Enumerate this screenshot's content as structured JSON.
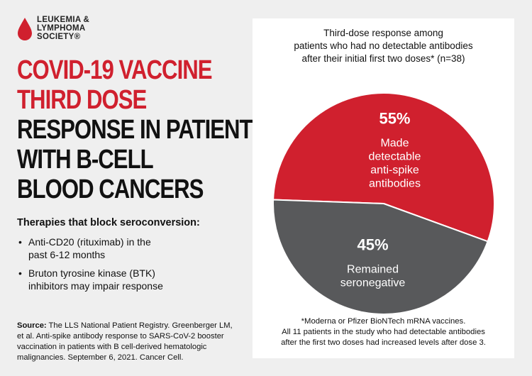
{
  "logo": {
    "lines": [
      "LEUKEMIA &",
      "LYMPHOMA",
      "SOCIETY®"
    ],
    "drop_color": "#d0202e"
  },
  "headline": {
    "red_lines": [
      "COVID-19 VACCINE",
      "THIRD DOSE"
    ],
    "dark_lines": [
      "RESPONSE IN PATIENTS",
      "WITH B-CELL",
      "BLOOD CANCERS"
    ]
  },
  "therapies": {
    "heading": "Therapies that block seroconversion:",
    "items": [
      [
        "Anti-CD20 (rituximab) in the",
        "past 6-12 months"
      ],
      [
        "Bruton tyrosine kinase (BTK)",
        "inhibitors may impair response"
      ]
    ]
  },
  "source": {
    "label": "Source:",
    "lines": [
      " The LLS National Patient Registry. Greenberger LM,",
      "et al. Anti-spike antibody response to SARS-CoV-2 booster",
      "vaccination in patients with B cell-derived hematologic",
      "malignancies. September 6, 2021. Cancer Cell."
    ]
  },
  "chart_data": {
    "type": "pie",
    "title_lines": [
      "Third-dose response among",
      "patients who had no detectable antibodies",
      "after their initial first two doses* (n=38)"
    ],
    "slices": [
      {
        "pct_label": "55%",
        "value": 55,
        "label_lines": [
          "Made",
          "detectable",
          "anti-spike",
          "antibodies"
        ],
        "color": "#d0202e"
      },
      {
        "pct_label": "45%",
        "value": 45,
        "label_lines": [
          "Remained",
          "seronegative"
        ],
        "color": "#58595b"
      }
    ],
    "footnote_lines": [
      "*Moderna or Pfizer BioNTech mRNA vaccines.",
      "All 11 patients in the study who had detectable antibodies",
      "after the first two doses had increased levels after dose 3."
    ]
  }
}
